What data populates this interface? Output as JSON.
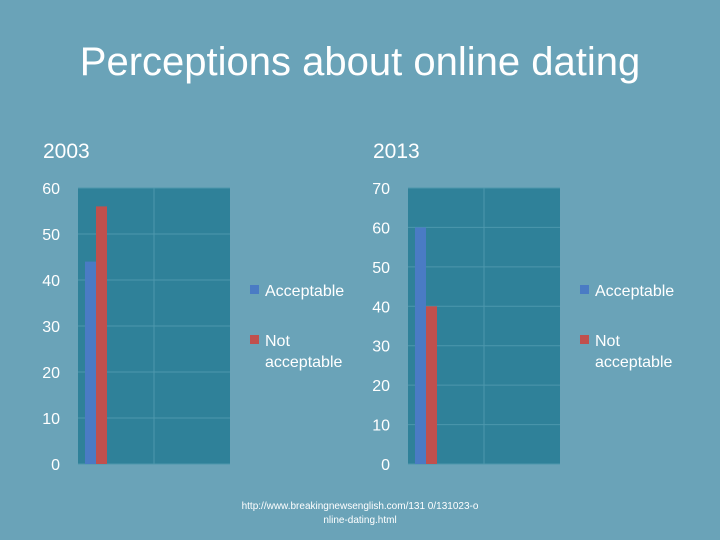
{
  "slide": {
    "title": "Perceptions about online dating",
    "source": "http://www.breakingnewsenglish.com/131 0/131023-online-dating.html"
  },
  "colors": {
    "acceptable": "#4a7bc4",
    "not_acceptable": "#c0504d",
    "plot_bg": "#2f8199"
  },
  "chart_data": [
    {
      "type": "bar",
      "title": "2003",
      "categories": [
        ""
      ],
      "series": [
        {
          "name": "Acceptable",
          "values": [
            44
          ]
        },
        {
          "name": "Not acceptable",
          "values": [
            56
          ]
        }
      ],
      "ylim": [
        0,
        60
      ],
      "yticks": [
        0,
        10,
        20,
        30,
        40,
        50,
        60
      ],
      "legend": "right",
      "grid": true
    },
    {
      "type": "bar",
      "title": "2013",
      "categories": [
        ""
      ],
      "series": [
        {
          "name": "Acceptable",
          "values": [
            60
          ]
        },
        {
          "name": "Not acceptable",
          "values": [
            40
          ]
        }
      ],
      "ylim": [
        0,
        70
      ],
      "yticks": [
        0,
        10,
        20,
        30,
        40,
        50,
        60,
        70
      ],
      "legend": "right",
      "grid": true
    }
  ]
}
